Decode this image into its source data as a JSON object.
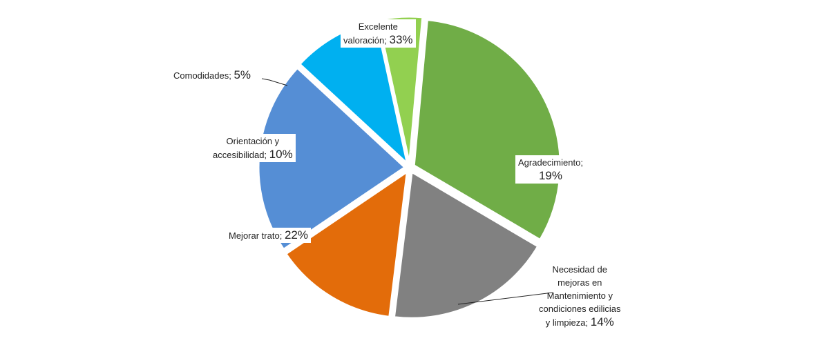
{
  "chart_data": {
    "type": "pie",
    "start_angle_deg": 84.8,
    "direction": "clockwise",
    "exploded": true,
    "legend": "none",
    "slices": [
      {
        "label": "Excelente valoración",
        "display_name": "Excelente\nvaloración;",
        "value": 33,
        "value_text": "33%",
        "color": "#70ad47"
      },
      {
        "label": "Agradecimiento",
        "display_name": "Agradecimiento;",
        "value": 19,
        "value_text": "19%",
        "color": "#818181"
      },
      {
        "label": "Necesidad de mejoras en Mantenimiento y condiciones edilicias y limpieza",
        "display_name": "Necesidad de\nmejoras en\nMantenimiento y\ncondiciones edilicias\ny limpieza;",
        "value": 14,
        "value_text": "14%",
        "color": "#e36c0a"
      },
      {
        "label": "Mejorar trato",
        "display_name": "Mejorar trato;",
        "value": 22,
        "value_text": "22%",
        "color": "#558ed5"
      },
      {
        "label": "Orientación y accesibilidad",
        "display_name": "Orientación y\naccesibilidad;",
        "value": 10,
        "value_text": "10%",
        "color": "#00b0f0"
      },
      {
        "label": "Comodidades",
        "display_name": "Comodidades;",
        "value": 5,
        "value_text": "5%",
        "color": "#92d050"
      }
    ]
  }
}
